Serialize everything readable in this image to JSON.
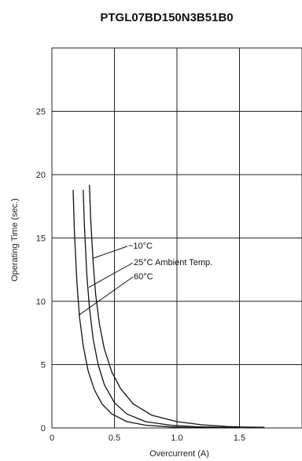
{
  "chart_data": {
    "type": "line",
    "title": "PTGL07BD150N3B51B0",
    "xlabel": "Overcurrent (A)",
    "ylabel": "Operating Time (sec.)",
    "xlim": [
      0,
      2.0
    ],
    "ylim": [
      0,
      30
    ],
    "grid": true,
    "x_ticks": [
      0,
      0.5,
      1.0,
      1.5
    ],
    "x_tick_labels": [
      "0",
      "0.5",
      "1.0",
      "1.5"
    ],
    "y_ticks": [
      0,
      5,
      10,
      15,
      20,
      25
    ],
    "y_tick_labels": [
      "0",
      "5",
      "10",
      "15",
      "20",
      "25"
    ],
    "series": [
      {
        "name": "−10°C",
        "x": [
          0.3,
          0.31,
          0.33,
          0.35,
          0.38,
          0.42,
          0.48,
          0.55,
          0.65,
          0.8,
          1.0,
          1.2,
          1.4,
          1.55,
          1.7
        ],
        "y": [
          19.2,
          16.5,
          13.0,
          10.5,
          8.2,
          6.2,
          4.4,
          3.1,
          1.9,
          1.0,
          0.5,
          0.25,
          0.12,
          0.07,
          0.05
        ]
      },
      {
        "name": "25°C Ambient Temp.",
        "x": [
          0.25,
          0.26,
          0.28,
          0.3,
          0.33,
          0.37,
          0.42,
          0.5,
          0.6,
          0.75,
          0.95,
          1.15,
          1.35,
          1.5
        ],
        "y": [
          18.8,
          16.0,
          12.0,
          9.5,
          7.0,
          5.0,
          3.4,
          2.0,
          1.1,
          0.5,
          0.22,
          0.1,
          0.05,
          0.03
        ]
      },
      {
        "name": "60°C",
        "x": [
          0.17,
          0.18,
          0.2,
          0.22,
          0.25,
          0.29,
          0.34,
          0.4,
          0.48,
          0.6,
          0.75,
          0.95,
          1.15,
          1.35
        ],
        "y": [
          18.8,
          15.5,
          11.5,
          8.8,
          6.5,
          4.5,
          3.0,
          1.9,
          1.1,
          0.5,
          0.22,
          0.08,
          0.03,
          0.01
        ]
      }
    ],
    "annotations": [
      {
        "text": "−10°C",
        "series": "−10°C"
      },
      {
        "text": "25°C Ambient Temp.",
        "series": "25°C Ambient Temp."
      },
      {
        "text": "60°C",
        "series": "60°C"
      }
    ],
    "colors": {
      "line": "#111111",
      "grid": "#222222"
    }
  }
}
